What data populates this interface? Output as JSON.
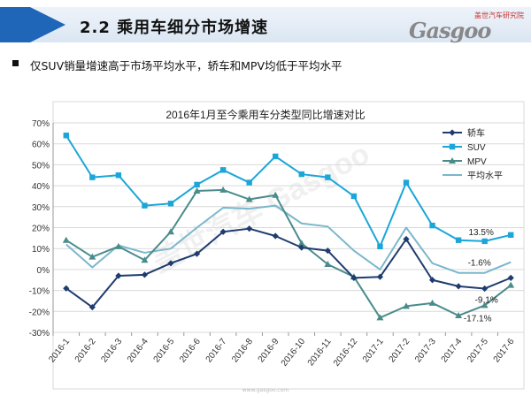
{
  "header": {
    "section_title": "2.2  乘用车细分市场增速",
    "logo_tagline": "盖世汽车研究院",
    "logo_word": "Gasgoo"
  },
  "bullet": {
    "text": "仅SUV销量增速高于市场平均水平，轿车和MPV均低于平均水平"
  },
  "footer": {
    "url": "www.gasgoo.com"
  },
  "chart_data": {
    "type": "line",
    "title": "2016年1月至今乘用车分类型同比增速对比",
    "categories": [
      "2016-1",
      "2016-2",
      "2016-3",
      "2016-4",
      "2016-5",
      "2016-6",
      "2016-7",
      "2016-8",
      "2016-9",
      "2016-10",
      "2016-11",
      "2016-12",
      "2017-1",
      "2017-2",
      "2017-3",
      "2017-4",
      "2017-5",
      "2017-6"
    ],
    "ylim": [
      -30,
      70
    ],
    "ytick_step": 10,
    "ytick_format": "percent",
    "grid": "horizontal",
    "legend_position": "top-right",
    "series": [
      {
        "name": "轿车",
        "color": "#1f3c6e",
        "marker": "diamond",
        "values": [
          -9,
          -18,
          -3,
          -2.5,
          3,
          7.5,
          18,
          19.5,
          16,
          10.5,
          9,
          -4,
          -3.5,
          14.5,
          -5,
          -8,
          -9.1,
          -4
        ]
      },
      {
        "name": "SUV",
        "color": "#1aa6d8",
        "marker": "square",
        "values": [
          64,
          44,
          45,
          30.5,
          31.5,
          40.5,
          47.5,
          41.5,
          54,
          45.5,
          44,
          35,
          11,
          41.5,
          21,
          14,
          13.5,
          16.5
        ]
      },
      {
        "name": "MPV",
        "color": "#4a8c8c",
        "marker": "triangle",
        "values": [
          14,
          6,
          11,
          4.5,
          18,
          37.5,
          38,
          33.5,
          35.5,
          12.5,
          2.5,
          -3.5,
          -23,
          -17.5,
          -16,
          -22,
          -17.1,
          -7.5
        ]
      },
      {
        "name": "平均水平",
        "color": "#7ab7cc",
        "marker": "none",
        "values": [
          12,
          1,
          11.5,
          8,
          10,
          20,
          29.5,
          29,
          30.5,
          22,
          20.5,
          9,
          0,
          20,
          3,
          -1.6,
          -1.6,
          3.5
        ]
      }
    ],
    "annotations": [
      {
        "text": "13.5%",
        "series": "SUV"
      },
      {
        "text": "-1.6%",
        "series": "平均水平"
      },
      {
        "text": "-9.1%",
        "series": "轿车"
      },
      {
        "text": "-17.1%",
        "series": "MPV"
      }
    ],
    "watermark": "盖世汽车 Gasgoo"
  }
}
